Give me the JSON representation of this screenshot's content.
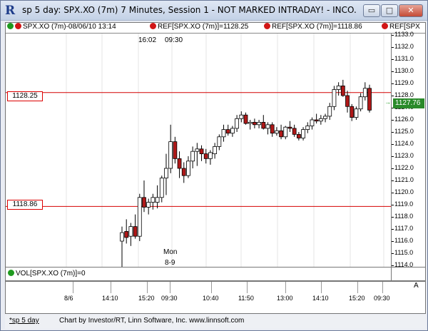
{
  "window": {
    "title": "sp 5 day: SPX.XO (7m) 7 Minutes, Session 1 - NOT MARKED INTRADAY! - INCO...",
    "min_label": "▭",
    "max_label": "□",
    "close_label": "✕",
    "app_icon": "R"
  },
  "legend": {
    "symbol_text": "SPX.XO (7m)-08/06/10 13:14",
    "ref1_text": "REF[SPX.XO (7m)]=1128.25",
    "ref2_text": "REF[SPX.XO (7m)]=1118.86",
    "ref3_text": "REF[SPX",
    "colors": {
      "green": "#1f9a1f",
      "red": "#d11616"
    }
  },
  "session_labels": {
    "start_time": "16:02",
    "start_time2": "09:30",
    "day_name": "Mon",
    "day_date": "8-9"
  },
  "ref_lines": {
    "upper": "1128.25",
    "lower": "1118.86"
  },
  "last_price": "1127.76",
  "volume": {
    "label": "VOL[SPX.XO (7m)]=0"
  },
  "time_axis": {
    "labels": [
      "8/6",
      "14:10",
      "15:20",
      "09:30",
      "10:40",
      "11:50",
      "13:00",
      "14:10",
      "15:20",
      "09:30"
    ],
    "scroll_arrow": "A"
  },
  "status_bar": {
    "tab": "*sp 5 day",
    "credit": "Chart by Investor/RT, Linn Software, Inc. www.linnsoft.com"
  },
  "chart_data": {
    "type": "candlestick",
    "title": "",
    "ylim": [
      1113,
      1133
    ],
    "y_ticks": [
      1114,
      1115,
      1116,
      1117,
      1118,
      1119,
      1120,
      1121,
      1122,
      1123,
      1124,
      1125,
      1126,
      1127,
      1128,
      1129,
      1130,
      1131,
      1132,
      1133
    ],
    "reference_lines": [
      1128.25,
      1118.86
    ],
    "candles": [
      {
        "o": 1116.0,
        "h": 1117.2,
        "l": 1112.6,
        "c": 1116.7
      },
      {
        "o": 1116.8,
        "h": 1117.8,
        "l": 1115.8,
        "c": 1116.3
      },
      {
        "o": 1116.4,
        "h": 1117.5,
        "l": 1115.6,
        "c": 1117.2
      },
      {
        "o": 1117.2,
        "h": 1118.2,
        "l": 1116.2,
        "c": 1116.4
      },
      {
        "o": 1116.4,
        "h": 1119.9,
        "l": 1116.0,
        "c": 1119.6
      },
      {
        "o": 1119.6,
        "h": 1121.0,
        "l": 1118.4,
        "c": 1118.8
      },
      {
        "o": 1118.8,
        "h": 1119.5,
        "l": 1118.2,
        "c": 1119.2
      },
      {
        "o": 1119.2,
        "h": 1119.9,
        "l": 1118.6,
        "c": 1119.6
      },
      {
        "o": 1119.2,
        "h": 1120.6,
        "l": 1118.7,
        "c": 1119.6
      },
      {
        "o": 1119.6,
        "h": 1121.4,
        "l": 1119.2,
        "c": 1121.2
      },
      {
        "o": 1121.2,
        "h": 1123.2,
        "l": 1119.8,
        "c": 1122.0
      },
      {
        "o": 1122.0,
        "h": 1125.6,
        "l": 1121.6,
        "c": 1124.2
      },
      {
        "o": 1124.2,
        "h": 1124.6,
        "l": 1122.4,
        "c": 1122.8
      },
      {
        "o": 1122.8,
        "h": 1123.4,
        "l": 1121.2,
        "c": 1122.0
      },
      {
        "o": 1122.0,
        "h": 1122.5,
        "l": 1120.8,
        "c": 1121.4
      },
      {
        "o": 1121.4,
        "h": 1123.0,
        "l": 1121.2,
        "c": 1122.6
      },
      {
        "o": 1122.6,
        "h": 1123.8,
        "l": 1122.0,
        "c": 1123.4
      },
      {
        "o": 1123.4,
        "h": 1124.1,
        "l": 1122.2,
        "c": 1123.6
      },
      {
        "o": 1123.6,
        "h": 1123.9,
        "l": 1122.6,
        "c": 1123.2
      },
      {
        "o": 1123.2,
        "h": 1123.6,
        "l": 1122.4,
        "c": 1122.8
      },
      {
        "o": 1122.8,
        "h": 1123.5,
        "l": 1122.3,
        "c": 1123.3
      },
      {
        "o": 1123.2,
        "h": 1124.1,
        "l": 1122.8,
        "c": 1123.8
      },
      {
        "o": 1123.8,
        "h": 1124.8,
        "l": 1123.5,
        "c": 1124.6
      },
      {
        "o": 1124.6,
        "h": 1125.6,
        "l": 1124.2,
        "c": 1125.2
      },
      {
        "o": 1125.2,
        "h": 1125.6,
        "l": 1124.7,
        "c": 1124.9
      },
      {
        "o": 1124.9,
        "h": 1125.5,
        "l": 1124.6,
        "c": 1125.3
      },
      {
        "o": 1125.3,
        "h": 1126.4,
        "l": 1125.0,
        "c": 1126.1
      },
      {
        "o": 1126.1,
        "h": 1126.7,
        "l": 1125.8,
        "c": 1126.4
      },
      {
        "o": 1126.4,
        "h": 1126.6,
        "l": 1125.6,
        "c": 1125.7
      },
      {
        "o": 1125.7,
        "h": 1126.0,
        "l": 1125.2,
        "c": 1125.8
      },
      {
        "o": 1125.8,
        "h": 1126.1,
        "l": 1125.3,
        "c": 1125.6
      },
      {
        "o": 1125.6,
        "h": 1126.0,
        "l": 1125.3,
        "c": 1125.8
      },
      {
        "o": 1125.8,
        "h": 1126.4,
        "l": 1125.2,
        "c": 1125.3
      },
      {
        "o": 1125.3,
        "h": 1125.8,
        "l": 1124.8,
        "c": 1125.6
      },
      {
        "o": 1125.6,
        "h": 1125.8,
        "l": 1124.6,
        "c": 1124.9
      },
      {
        "o": 1124.9,
        "h": 1125.4,
        "l": 1124.7,
        "c": 1125.1
      },
      {
        "o": 1125.1,
        "h": 1125.6,
        "l": 1124.4,
        "c": 1124.6
      },
      {
        "o": 1124.6,
        "h": 1125.5,
        "l": 1124.4,
        "c": 1125.4
      },
      {
        "o": 1125.4,
        "h": 1125.9,
        "l": 1125.0,
        "c": 1125.3
      },
      {
        "o": 1125.3,
        "h": 1125.6,
        "l": 1124.6,
        "c": 1124.8
      },
      {
        "o": 1124.8,
        "h": 1125.0,
        "l": 1124.3,
        "c": 1124.5
      },
      {
        "o": 1124.5,
        "h": 1125.4,
        "l": 1124.3,
        "c": 1125.2
      },
      {
        "o": 1125.2,
        "h": 1125.8,
        "l": 1124.9,
        "c": 1125.5
      },
      {
        "o": 1125.5,
        "h": 1126.2,
        "l": 1125.2,
        "c": 1126.0
      },
      {
        "o": 1126.0,
        "h": 1126.5,
        "l": 1125.7,
        "c": 1125.9
      },
      {
        "o": 1125.9,
        "h": 1126.4,
        "l": 1125.6,
        "c": 1126.1
      },
      {
        "o": 1126.1,
        "h": 1126.5,
        "l": 1125.8,
        "c": 1126.3
      },
      {
        "o": 1126.3,
        "h": 1127.4,
        "l": 1126.0,
        "c": 1127.1
      },
      {
        "o": 1127.1,
        "h": 1128.8,
        "l": 1126.8,
        "c": 1128.5
      },
      {
        "o": 1128.5,
        "h": 1129.1,
        "l": 1128.0,
        "c": 1128.8
      },
      {
        "o": 1128.8,
        "h": 1129.3,
        "l": 1127.9,
        "c": 1128.0
      },
      {
        "o": 1128.0,
        "h": 1128.4,
        "l": 1126.6,
        "c": 1127.1
      },
      {
        "o": 1127.1,
        "h": 1127.3,
        "l": 1125.9,
        "c": 1126.2
      },
      {
        "o": 1126.2,
        "h": 1127.1,
        "l": 1126.0,
        "c": 1126.9
      },
      {
        "o": 1126.9,
        "h": 1128.2,
        "l": 1126.7,
        "c": 1127.9
      },
      {
        "o": 1127.9,
        "h": 1129.1,
        "l": 1127.6,
        "c": 1128.6
      },
      {
        "o": 1128.6,
        "h": 1128.9,
        "l": 1126.6,
        "c": 1126.8
      }
    ]
  }
}
